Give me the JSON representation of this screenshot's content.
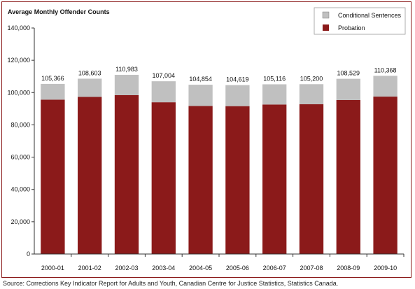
{
  "chart_data": {
    "type": "bar",
    "stacked": true,
    "title": "Average Monthly Offender Counts",
    "xlabel": "",
    "ylabel": "",
    "ylim": [
      0,
      140000
    ],
    "yticks": [
      "0",
      "20,000",
      "40,000",
      "60,000",
      "80,000",
      "100,000",
      "120,000",
      "140,000"
    ],
    "categories": [
      "2000-01",
      "2001-02",
      "2002-03",
      "2003-04",
      "2004-05",
      "2005-06",
      "2006-07",
      "2007-08",
      "2008-09",
      "2009-10"
    ],
    "series": [
      {
        "name": "Probation",
        "color": "#8b1a1a",
        "values": [
          95600,
          97300,
          98400,
          94000,
          91700,
          91600,
          92600,
          92800,
          95400,
          97500
        ]
      },
      {
        "name": "Conditional Sentences",
        "color": "#c0c0c0",
        "values": [
          9766,
          11303,
          12583,
          13004,
          13154,
          13019,
          12516,
          12400,
          13129,
          12868
        ]
      }
    ],
    "totals": [
      105366,
      108603,
      110983,
      107004,
      104854,
      104619,
      105116,
      105200,
      108529,
      110368
    ],
    "total_labels": [
      "105,366",
      "108,603",
      "110,983",
      "107,004",
      "104,854",
      "104,619",
      "105,116",
      "105,200",
      "108,529",
      "110,368"
    ],
    "legend_order": [
      "Conditional Sentences",
      "Probation"
    ],
    "legend_position": "top-right",
    "grid": false
  },
  "source": "Source: Corrections Key Indicator Report for Adults and Youth, Canadian Centre for Justice Statistics, Statistics Canada."
}
